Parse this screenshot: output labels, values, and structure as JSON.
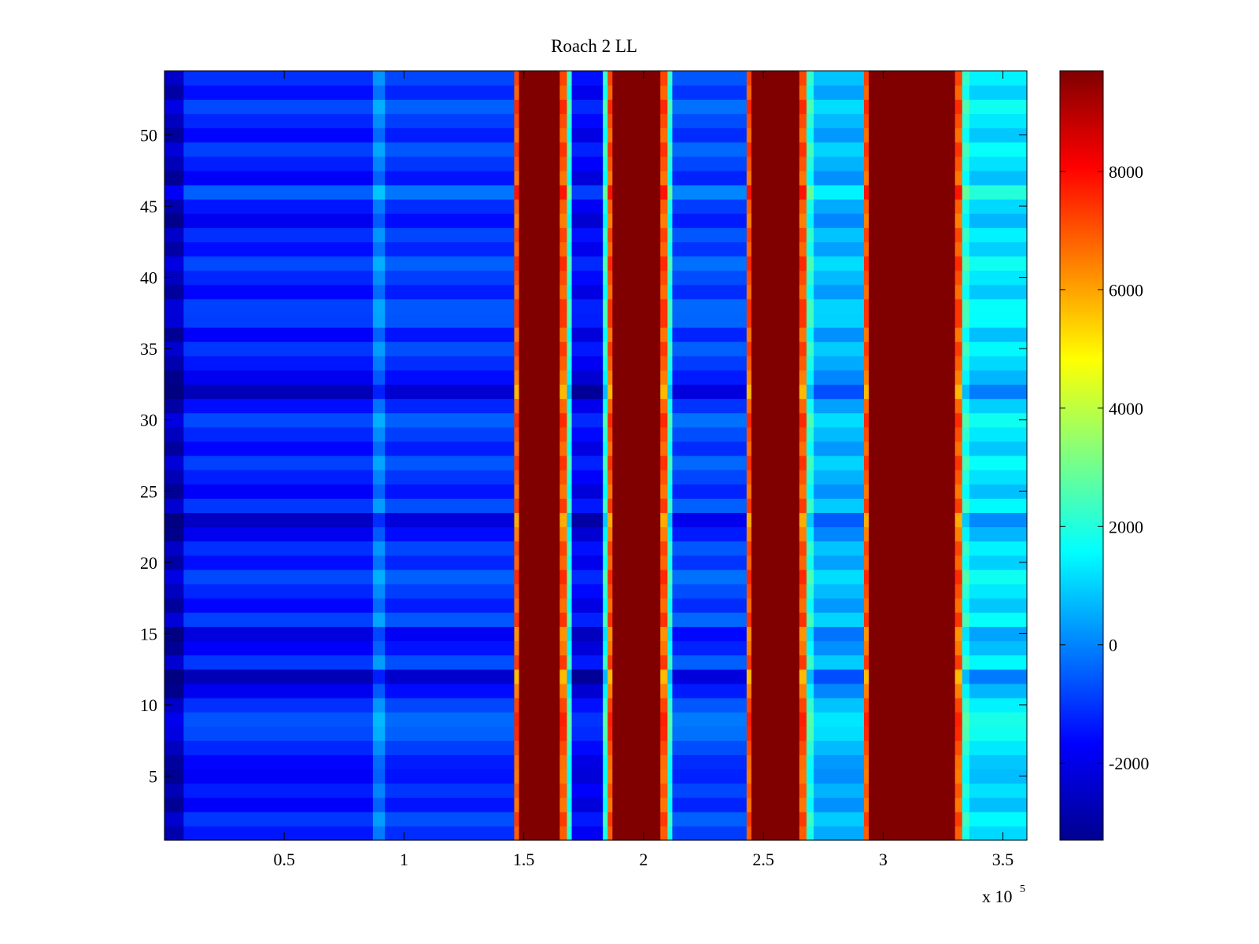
{
  "chart_data": {
    "type": "heatmap",
    "title": "Roach 2 LL",
    "xlabel": "",
    "ylabel": "",
    "x_multiplier_label": "x 10",
    "x_multiplier_exponent": "5",
    "xlim": [
      0,
      360000
    ],
    "ylim": [
      0.5,
      54.5
    ],
    "xticks": [
      {
        "value": 0.5,
        "label": "0.5"
      },
      {
        "value": 1,
        "label": "1"
      },
      {
        "value": 1.5,
        "label": "1.5"
      },
      {
        "value": 2,
        "label": "2"
      },
      {
        "value": 2.5,
        "label": "2.5"
      },
      {
        "value": 3,
        "label": "3"
      },
      {
        "value": 3.5,
        "label": "3.5"
      }
    ],
    "yticks": [
      {
        "value": 5,
        "label": "5"
      },
      {
        "value": 10,
        "label": "10"
      },
      {
        "value": 15,
        "label": "15"
      },
      {
        "value": 20,
        "label": "20"
      },
      {
        "value": 25,
        "label": "25"
      },
      {
        "value": 30,
        "label": "30"
      },
      {
        "value": 35,
        "label": "35"
      },
      {
        "value": 40,
        "label": "40"
      },
      {
        "value": 45,
        "label": "45"
      },
      {
        "value": 50,
        "label": "50"
      }
    ],
    "colorbar": {
      "colormap": "jet",
      "range": [
        -3300,
        9700
      ],
      "ticks": [
        {
          "value": -2000,
          "label": "-2000"
        },
        {
          "value": 0,
          "label": "0"
        },
        {
          "value": 2000,
          "label": "2000"
        },
        {
          "value": 4000,
          "label": "4000"
        },
        {
          "value": 6000,
          "label": "6000"
        },
        {
          "value": 8000,
          "label": "8000"
        }
      ]
    },
    "column_bands": [
      {
        "x_start": 0,
        "x_end": 8000,
        "level": -2600
      },
      {
        "x_start": 8000,
        "x_end": 87000,
        "level": -1300
      },
      {
        "x_start": 87000,
        "x_end": 92000,
        "level": 0
      },
      {
        "x_start": 92000,
        "x_end": 146000,
        "level": -1000
      },
      {
        "x_start": 146000,
        "x_end": 148000,
        "level": 7000
      },
      {
        "x_start": 148000,
        "x_end": 165000,
        "level": 9700
      },
      {
        "x_start": 165000,
        "x_end": 168000,
        "level": 7000
      },
      {
        "x_start": 168000,
        "x_end": 170000,
        "level": 2000
      },
      {
        "x_start": 170000,
        "x_end": 183000,
        "level": -1700
      },
      {
        "x_start": 183000,
        "x_end": 185000,
        "level": 2000
      },
      {
        "x_start": 185000,
        "x_end": 187000,
        "level": 7000
      },
      {
        "x_start": 187000,
        "x_end": 207000,
        "level": 9700
      },
      {
        "x_start": 207000,
        "x_end": 210000,
        "level": 7000
      },
      {
        "x_start": 210000,
        "x_end": 212000,
        "level": 2000
      },
      {
        "x_start": 212000,
        "x_end": 243000,
        "level": -800
      },
      {
        "x_start": 243000,
        "x_end": 245000,
        "level": 7000
      },
      {
        "x_start": 245000,
        "x_end": 265000,
        "level": 9700
      },
      {
        "x_start": 265000,
        "x_end": 268000,
        "level": 7000
      },
      {
        "x_start": 268000,
        "x_end": 271000,
        "level": 2000
      },
      {
        "x_start": 271000,
        "x_end": 292000,
        "level": 600
      },
      {
        "x_start": 292000,
        "x_end": 294000,
        "level": 7000
      },
      {
        "x_start": 294000,
        "x_end": 330000,
        "level": 9700
      },
      {
        "x_start": 330000,
        "x_end": 333000,
        "level": 7000
      },
      {
        "x_start": 333000,
        "x_end": 336000,
        "level": 2000
      },
      {
        "x_start": 336000,
        "x_end": 360000,
        "level": 1200
      }
    ],
    "row_offsets": [
      {
        "row": 5,
        "offset": -900
      },
      {
        "row": 9,
        "offset": 900
      },
      {
        "row": 12,
        "offset": -1200
      },
      {
        "row": 15,
        "offset": -800
      },
      {
        "row": 23,
        "offset": -1000
      },
      {
        "row": 32,
        "offset": -1500
      },
      {
        "row": 37,
        "offset": 400
      },
      {
        "row": 46,
        "offset": 500
      }
    ]
  }
}
